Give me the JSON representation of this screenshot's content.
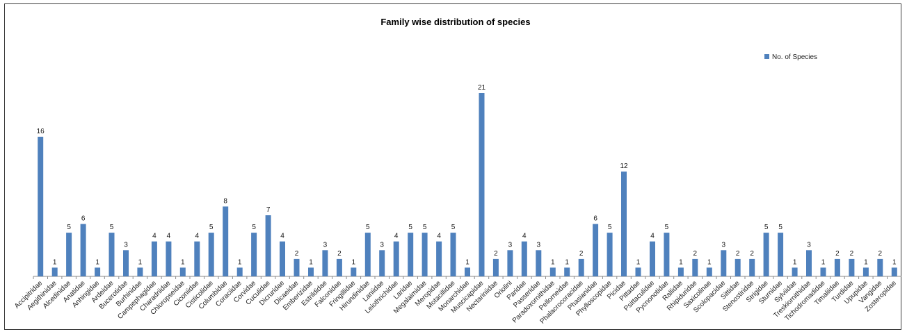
{
  "chart_data": {
    "type": "bar",
    "title": "Family wise distribution of species",
    "xlabel": "",
    "ylabel": "",
    "ylim": [
      0,
      21
    ],
    "grid": false,
    "legend_position": "top-right",
    "bar_color": "#4f81bd",
    "categories": [
      "Accipitridae",
      "Aegithinidae",
      "Alcedinidae",
      "Anatidae",
      "Anhingidae",
      "Ardeidae",
      "Bucerotidae",
      "Burhinidae",
      "Campephagidae",
      "Charadriidae",
      "Chloropseidae",
      "Ciconiidae",
      "Cisticolidae",
      "Columbidae",
      "Coraciidae",
      "Corvidae",
      "Cuculidae",
      "Dicruridae",
      "Dicaeidae",
      "Emberizidae",
      "Estrildidae",
      "Falconidae",
      "Fringillidae",
      "Hirundinidae",
      "Laniidae",
      "Leiothrichidae",
      "Laridae",
      "Megalaimidae",
      "Meropidae",
      "Motacillidae",
      "Monarchidae",
      "Muscicapidae",
      "Nectariniidae",
      "Oriolini",
      "Paridae",
      "Passeridae",
      "Paradoxornithidae",
      "Pellorneidae",
      "Phalacrocoracidae",
      "Phasianidae",
      "Phylloscopidae",
      "Picidae",
      "Pittadae",
      "Psittaculidae",
      "Pycnonotidae",
      "Rallidae",
      "Rhipiduridae",
      "Saxicolinae",
      "Scolopacidae",
      "Sittidae",
      "Stenostiridae",
      "Strigidae",
      "Sturnidae",
      "Sylviidae",
      "Treskiornithidae",
      "Tichodromadidae",
      "Timaliidae",
      "Turdidae",
      "Upupidae",
      "Vangidae",
      "Zosteropidae"
    ],
    "series": [
      {
        "name": "No. of Species",
        "values": [
          16,
          1,
          5,
          6,
          1,
          5,
          3,
          1,
          4,
          4,
          1,
          4,
          5,
          8,
          1,
          5,
          7,
          4,
          2,
          1,
          3,
          2,
          1,
          5,
          3,
          4,
          5,
          5,
          4,
          5,
          1,
          21,
          2,
          3,
          4,
          3,
          1,
          1,
          2,
          6,
          5,
          12,
          1,
          4,
          5,
          1,
          2,
          1,
          3,
          2,
          2,
          5,
          5,
          1,
          3,
          1,
          2,
          2,
          1,
          2,
          1
        ]
      }
    ]
  }
}
